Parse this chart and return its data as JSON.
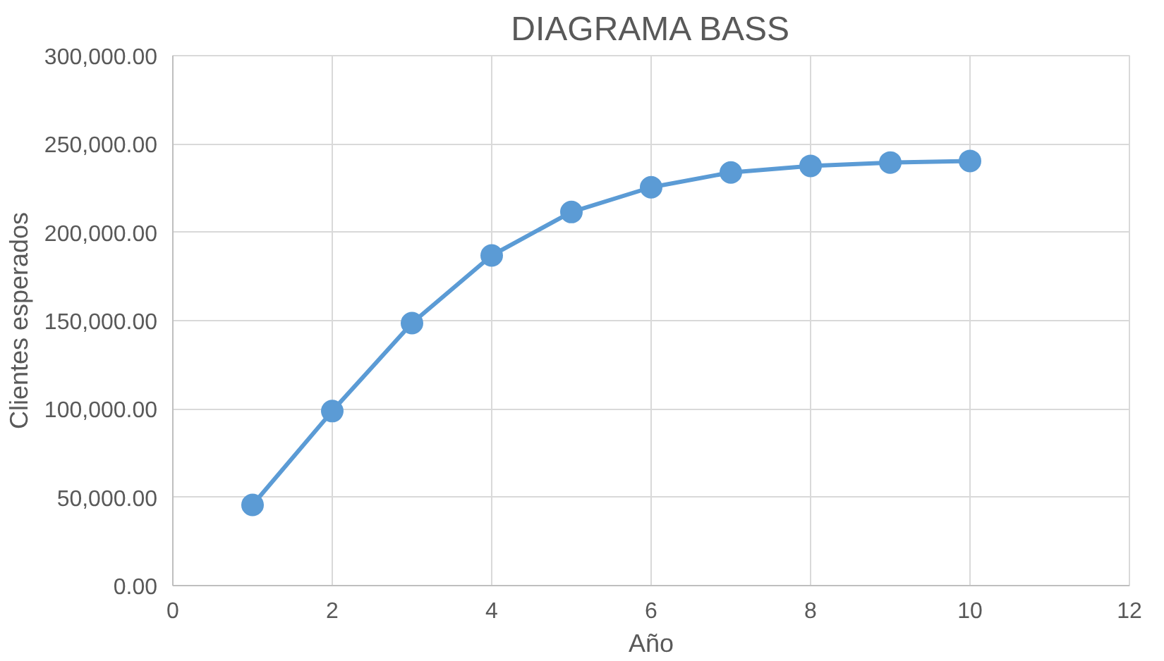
{
  "chart_data": {
    "type": "line",
    "title": "DIAGRAMA BASS",
    "xlabel": "Año",
    "ylabel": "Clientes esperados",
    "x": [
      1,
      2,
      3,
      4,
      5,
      6,
      7,
      8,
      9,
      10
    ],
    "series": [
      {
        "color": "#5b9bd5",
        "values": [
          45700,
          98800,
          148600,
          186900,
          211500,
          225500,
          233900,
          237600,
          239500,
          240400
        ]
      }
    ],
    "xlim": [
      0,
      12
    ],
    "xticks": [
      0,
      2,
      4,
      6,
      8,
      10,
      12
    ],
    "ylim": [
      0,
      300000
    ],
    "yticks": [
      {
        "value": 0,
        "label": "0.00"
      },
      {
        "value": 50000,
        "label": "50,000.00"
      },
      {
        "value": 100000,
        "label": "100,000.00"
      },
      {
        "value": 150000,
        "label": "150,000.00"
      },
      {
        "value": 200000,
        "label": "200,000.00"
      },
      {
        "value": 250000,
        "label": "250,000.00"
      },
      {
        "value": 300000,
        "label": "300,000.00"
      }
    ],
    "grid": true,
    "marker": "circle",
    "line_style": "solid"
  }
}
